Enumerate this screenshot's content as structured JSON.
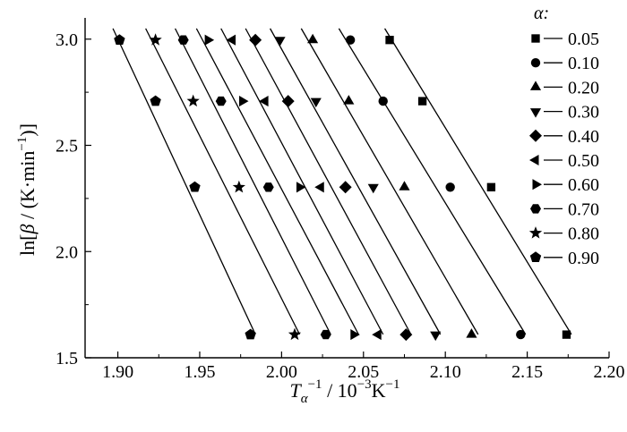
{
  "chart_data": {
    "type": "scatter",
    "title": "",
    "xlabel_main": "T",
    "xlabel_sub": "α",
    "xlabel_sup": "−1",
    "xlabel_rest": " / 10",
    "xlabel_rest_sup": "−3",
    "xlabel_unit": "K",
    "xlabel_unit_sup": "−1",
    "ylabel_main": "ln[",
    "ylabel_beta": "β",
    "ylabel_rest": " / (K·min",
    "ylabel_rest_sup": "−1",
    "ylabel_end": ")]",
    "xlim": [
      1.88,
      2.2
    ],
    "ylim": [
      1.5,
      3.1
    ],
    "xticks": [
      "1.90",
      "1.95",
      "2.00",
      "2.05",
      "2.10",
      "2.15",
      "2.20"
    ],
    "yticks": [
      "1.5",
      "2.0",
      "2.5",
      "3.0"
    ],
    "legend_title": "α:",
    "legend_position": "right",
    "y_levels": [
      1.609,
      2.303,
      2.708,
      2.996
    ],
    "series": [
      {
        "name": "0.05",
        "marker": "square",
        "x": [
          2.174,
          2.128,
          2.086,
          2.066
        ]
      },
      {
        "name": "0.10",
        "marker": "circle",
        "x": [
          2.146,
          2.103,
          2.062,
          2.042
        ]
      },
      {
        "name": "0.20",
        "marker": "triangle-up",
        "x": [
          2.116,
          2.075,
          2.041,
          2.019
        ]
      },
      {
        "name": "0.30",
        "marker": "triangle-down",
        "x": [
          2.094,
          2.056,
          2.021,
          1.999
        ]
      },
      {
        "name": "0.40",
        "marker": "diamond",
        "x": [
          2.076,
          2.039,
          2.004,
          1.984
        ]
      },
      {
        "name": "0.50",
        "marker": "triangle-left",
        "x": [
          2.059,
          2.024,
          1.99,
          1.97
        ]
      },
      {
        "name": "0.60",
        "marker": "triangle-right",
        "x": [
          2.044,
          2.011,
          1.976,
          1.955
        ]
      },
      {
        "name": "0.70",
        "marker": "hexagon",
        "x": [
          2.027,
          1.992,
          1.963,
          1.94
        ]
      },
      {
        "name": "0.80",
        "marker": "star",
        "x": [
          2.008,
          1.974,
          1.946,
          1.923
        ]
      },
      {
        "name": "0.90",
        "marker": "pentagon",
        "x": [
          1.981,
          1.947,
          1.923,
          1.901
        ]
      }
    ],
    "fit_lines": [
      {
        "series": "0.05",
        "x_at_top": 2.063,
        "x_at_bottom": 2.177
      },
      {
        "series": "0.10",
        "x_at_top": 2.035,
        "x_at_bottom": 2.149
      },
      {
        "series": "0.20",
        "x_at_top": 2.012,
        "x_at_bottom": 2.12
      },
      {
        "series": "0.30",
        "x_at_top": 1.993,
        "x_at_bottom": 2.097
      },
      {
        "series": "0.40",
        "x_at_top": 1.978,
        "x_at_bottom": 2.079
      },
      {
        "series": "0.50",
        "x_at_top": 1.963,
        "x_at_bottom": 2.062
      },
      {
        "series": "0.60",
        "x_at_top": 1.948,
        "x_at_bottom": 2.047
      },
      {
        "series": "0.70",
        "x_at_top": 1.935,
        "x_at_bottom": 2.03
      },
      {
        "series": "0.80",
        "x_at_top": 1.917,
        "x_at_bottom": 2.011
      },
      {
        "series": "0.90",
        "x_at_top": 1.897,
        "x_at_bottom": 1.984
      }
    ],
    "grid": false,
    "marker_color": "#000000",
    "line_color": "#000000"
  }
}
